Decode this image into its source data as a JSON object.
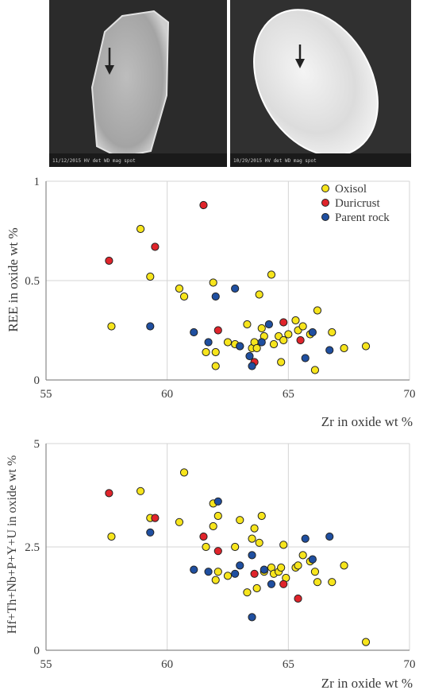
{
  "images": [
    {
      "caption": "11/12/2015   HV   det   WD   mag   spot"
    },
    {
      "caption": "10/29/2015   HV   det   WD   mag   spot"
    }
  ],
  "legend": {
    "entries": [
      {
        "label": "Oxisol",
        "color": "#f7e51c"
      },
      {
        "label": "Duricrust",
        "color": "#e0242b"
      },
      {
        "label": "Parent rock",
        "color": "#1f4fa0"
      }
    ]
  },
  "chart_data": [
    {
      "type": "scatter",
      "xlabel": "Zr in oxide wt %",
      "ylabel": "REE in oxide wt %",
      "xlim": [
        55,
        70
      ],
      "ylim": [
        0,
        1
      ],
      "xticks": [
        "55",
        "60",
        "65",
        "70"
      ],
      "yticks": [
        "0",
        "0.5",
        "1"
      ],
      "grid": true,
      "legend_position": "top-right",
      "series": [
        {
          "name": "Oxisol",
          "color": "#f7e51c",
          "points": [
            [
              57.7,
              0.27
            ],
            [
              58.9,
              0.76
            ],
            [
              59.3,
              0.52
            ],
            [
              60.5,
              0.46
            ],
            [
              60.7,
              0.42
            ],
            [
              61.6,
              0.14
            ],
            [
              61.9,
              0.49
            ],
            [
              62.0,
              0.14
            ],
            [
              62.0,
              0.07
            ],
            [
              62.5,
              0.19
            ],
            [
              62.8,
              0.18
            ],
            [
              63.0,
              0.17
            ],
            [
              63.3,
              0.28
            ],
            [
              63.5,
              0.16
            ],
            [
              63.6,
              0.19
            ],
            [
              63.7,
              0.16
            ],
            [
              63.8,
              0.43
            ],
            [
              63.9,
              0.26
            ],
            [
              64.0,
              0.22
            ],
            [
              64.3,
              0.53
            ],
            [
              64.4,
              0.18
            ],
            [
              64.6,
              0.22
            ],
            [
              64.7,
              0.09
            ],
            [
              64.8,
              0.2
            ],
            [
              65.0,
              0.23
            ],
            [
              65.3,
              0.3
            ],
            [
              65.4,
              0.25
            ],
            [
              65.6,
              0.27
            ],
            [
              65.9,
              0.23
            ],
            [
              66.1,
              0.05
            ],
            [
              66.2,
              0.35
            ],
            [
              66.8,
              0.24
            ],
            [
              67.3,
              0.16
            ],
            [
              68.2,
              0.17
            ]
          ]
        },
        {
          "name": "Duricrust",
          "color": "#e0242b",
          "points": [
            [
              57.6,
              0.6
            ],
            [
              59.5,
              0.67
            ],
            [
              61.5,
              0.88
            ],
            [
              62.1,
              0.25
            ],
            [
              63.6,
              0.09
            ],
            [
              64.8,
              0.29
            ],
            [
              65.5,
              0.2
            ]
          ]
        },
        {
          "name": "Parent rock",
          "color": "#1f4fa0",
          "points": [
            [
              59.3,
              0.27
            ],
            [
              61.1,
              0.24
            ],
            [
              61.7,
              0.19
            ],
            [
              62.0,
              0.42
            ],
            [
              62.8,
              0.46
            ],
            [
              63.0,
              0.17
            ],
            [
              63.4,
              0.12
            ],
            [
              63.5,
              0.07
            ],
            [
              63.9,
              0.19
            ],
            [
              64.2,
              0.28
            ],
            [
              65.7,
              0.11
            ],
            [
              66.0,
              0.24
            ],
            [
              66.7,
              0.15
            ]
          ]
        }
      ]
    },
    {
      "type": "scatter",
      "xlabel": "Zr in oxide wt %",
      "ylabel": "Hf+Th+Nb+P+Y+U in oxide wt %",
      "xlim": [
        55,
        70
      ],
      "ylim": [
        0,
        5
      ],
      "xticks": [
        "55",
        "60",
        "65",
        "70"
      ],
      "yticks": [
        "0",
        "2.5",
        "5"
      ],
      "grid": true,
      "series": [
        {
          "name": "Oxisol",
          "color": "#f7e51c",
          "points": [
            [
              57.7,
              2.75
            ],
            [
              58.9,
              3.85
            ],
            [
              59.3,
              3.2
            ],
            [
              60.5,
              3.1
            ],
            [
              60.7,
              4.3
            ],
            [
              61.6,
              2.5
            ],
            [
              61.9,
              3.55
            ],
            [
              61.9,
              3.0
            ],
            [
              62.0,
              1.7
            ],
            [
              62.1,
              3.25
            ],
            [
              62.1,
              1.9
            ],
            [
              62.5,
              1.8
            ],
            [
              62.8,
              2.5
            ],
            [
              63.0,
              3.15
            ],
            [
              63.3,
              1.4
            ],
            [
              63.5,
              2.7
            ],
            [
              63.6,
              2.95
            ],
            [
              63.7,
              1.5
            ],
            [
              63.8,
              2.6
            ],
            [
              63.9,
              3.25
            ],
            [
              64.0,
              1.9
            ],
            [
              64.3,
              2.0
            ],
            [
              64.4,
              1.85
            ],
            [
              64.6,
              1.9
            ],
            [
              64.7,
              2.0
            ],
            [
              64.8,
              2.55
            ],
            [
              64.9,
              1.75
            ],
            [
              65.3,
              2.0
            ],
            [
              65.4,
              2.05
            ],
            [
              65.6,
              2.3
            ],
            [
              65.9,
              2.15
            ],
            [
              66.1,
              1.9
            ],
            [
              66.2,
              1.65
            ],
            [
              66.8,
              1.65
            ],
            [
              67.3,
              2.05
            ],
            [
              68.2,
              0.2
            ]
          ]
        },
        {
          "name": "Duricrust",
          "color": "#e0242b",
          "points": [
            [
              57.6,
              3.8
            ],
            [
              59.5,
              3.2
            ],
            [
              61.5,
              2.75
            ],
            [
              62.1,
              2.4
            ],
            [
              63.6,
              1.85
            ],
            [
              64.8,
              1.6
            ],
            [
              65.4,
              1.25
            ]
          ]
        },
        {
          "name": "Parent rock",
          "color": "#1f4fa0",
          "points": [
            [
              59.3,
              2.85
            ],
            [
              61.1,
              1.95
            ],
            [
              61.7,
              1.9
            ],
            [
              62.1,
              3.6
            ],
            [
              62.8,
              1.85
            ],
            [
              63.0,
              2.05
            ],
            [
              63.5,
              2.3
            ],
            [
              63.5,
              0.8
            ],
            [
              64.0,
              1.95
            ],
            [
              64.3,
              1.6
            ],
            [
              65.7,
              2.7
            ],
            [
              66.0,
              2.2
            ],
            [
              66.7,
              2.75
            ]
          ]
        }
      ]
    }
  ]
}
